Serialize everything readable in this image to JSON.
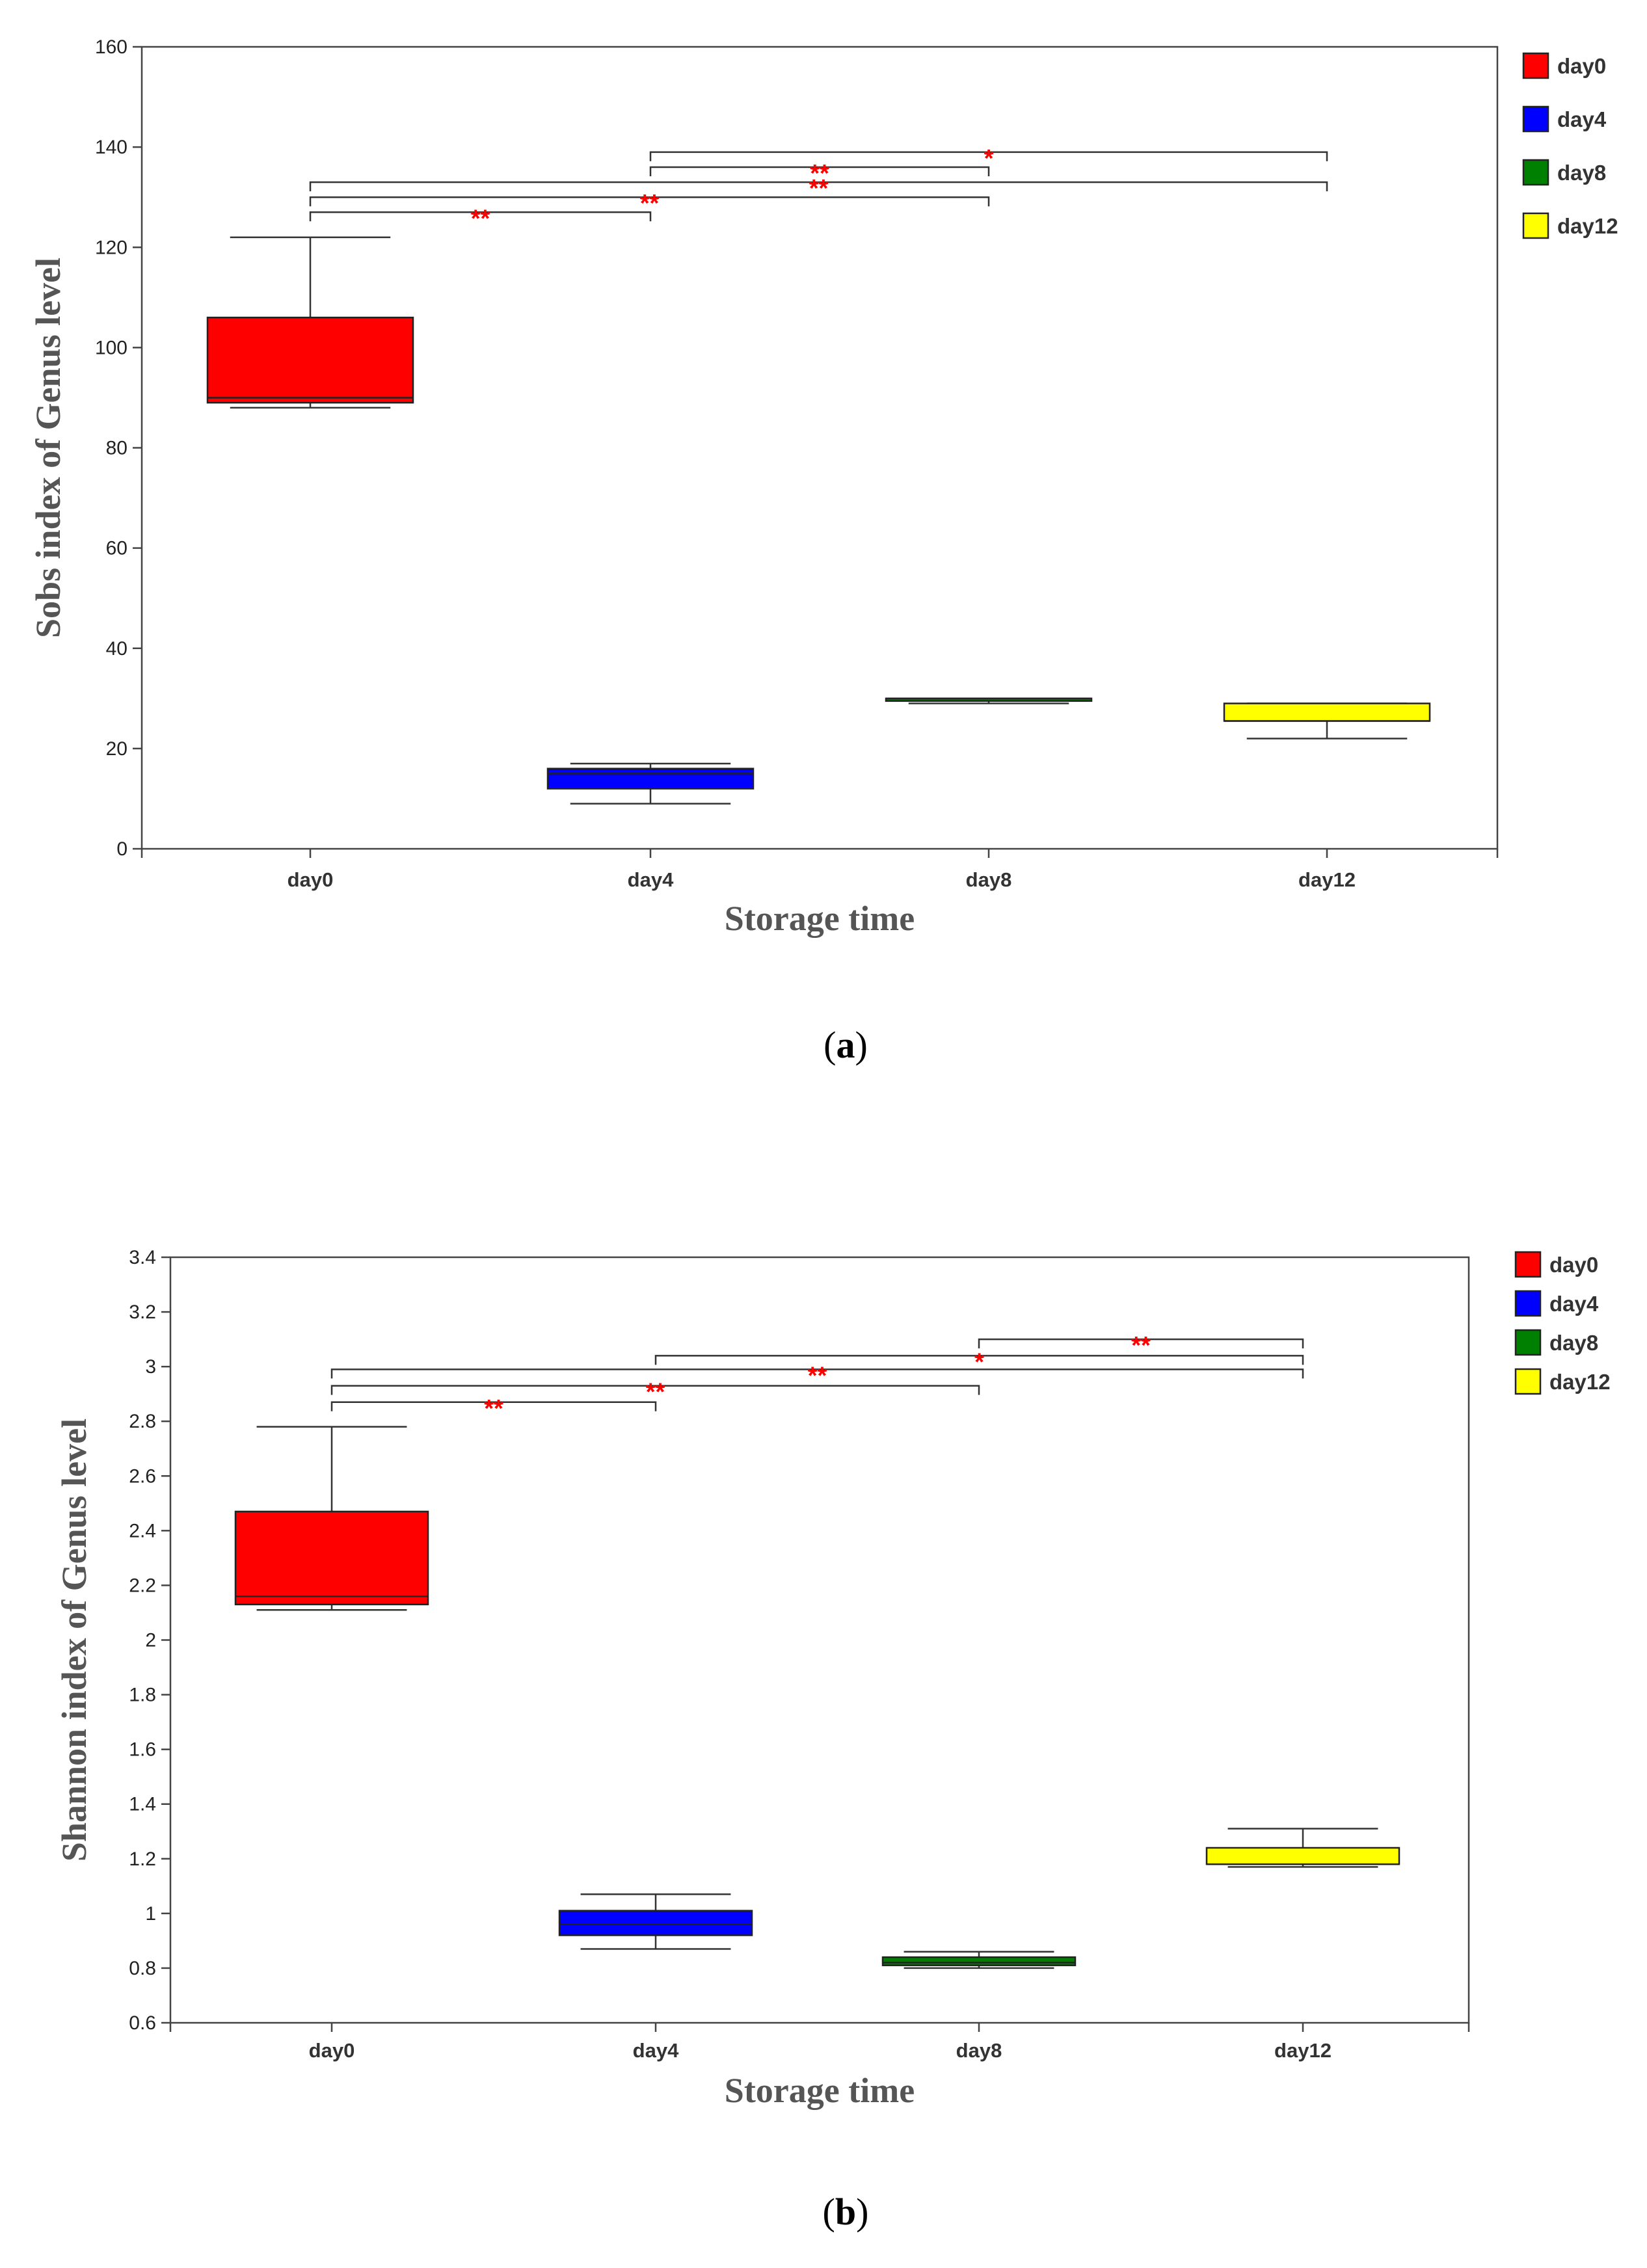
{
  "chart_data": [
    {
      "type": "boxplot",
      "panel_label": "a",
      "xlabel": "Storage time",
      "ylabel": "Sobs index of Genus level",
      "ylim": [
        0,
        160
      ],
      "yticks": [
        0,
        20,
        40,
        60,
        80,
        100,
        120,
        140,
        160
      ],
      "categories": [
        "day0",
        "day4",
        "day8",
        "day12"
      ],
      "colors": [
        "#ff0000",
        "#0000ff",
        "#008000",
        "#ffff00"
      ],
      "legend": [
        "day0",
        "day4",
        "day8",
        "day12"
      ],
      "legend_position": "top-right",
      "boxes": [
        {
          "min": 88,
          "q1": 89,
          "median": 90,
          "q3": 106,
          "max": 122
        },
        {
          "min": 9,
          "q1": 12,
          "median": 15,
          "q3": 16,
          "max": 17
        },
        {
          "min": 29,
          "q1": 29.5,
          "median": 30,
          "q3": 30,
          "max": 30
        },
        {
          "min": 22,
          "q1": 25.5,
          "median": 25.5,
          "q3": 29,
          "max": 29
        }
      ],
      "significance": [
        {
          "from": "day0",
          "to": "day4",
          "y": 127,
          "label": "**"
        },
        {
          "from": "day0",
          "to": "day8",
          "y": 130,
          "label": "**"
        },
        {
          "from": "day0",
          "to": "day12",
          "y": 133,
          "label": "**"
        },
        {
          "from": "day4",
          "to": "day8",
          "y": 136,
          "label": "**"
        },
        {
          "from": "day4",
          "to": "day12",
          "y": 139,
          "label": "*"
        }
      ]
    },
    {
      "type": "boxplot",
      "panel_label": "b",
      "xlabel": "Storage time",
      "ylabel": "Shannon index of Genus level",
      "ylim": [
        0.6,
        3.4
      ],
      "yticks": [
        0.6,
        0.8,
        1,
        1.2,
        1.4,
        1.6,
        1.8,
        2,
        2.2,
        2.4,
        2.6,
        2.8,
        3,
        3.2,
        3.4
      ],
      "ytick_labels": [
        "0.6",
        "0.8",
        "1",
        "1.2",
        "1.4",
        "1.6",
        "1.8",
        "2",
        "2.2",
        "2.4",
        "2.6",
        "2.8",
        "3",
        "3.2",
        "3.4"
      ],
      "categories": [
        "day0",
        "day4",
        "day8",
        "day12"
      ],
      "colors": [
        "#ff0000",
        "#0000ff",
        "#008000",
        "#ffff00"
      ],
      "legend": [
        "day0",
        "day4",
        "day8",
        "day12"
      ],
      "legend_position": "top-right",
      "boxes": [
        {
          "min": 2.11,
          "q1": 2.13,
          "median": 2.16,
          "q3": 2.47,
          "max": 2.78
        },
        {
          "min": 0.87,
          "q1": 0.92,
          "median": 0.96,
          "q3": 1.01,
          "max": 1.07
        },
        {
          "min": 0.8,
          "q1": 0.81,
          "median": 0.82,
          "q3": 0.84,
          "max": 0.86
        },
        {
          "min": 1.17,
          "q1": 1.18,
          "median": 1.18,
          "q3": 1.24,
          "max": 1.31
        }
      ],
      "significance": [
        {
          "from": "day0",
          "to": "day4",
          "y": 2.87,
          "label": "**"
        },
        {
          "from": "day0",
          "to": "day8",
          "y": 2.93,
          "label": "**"
        },
        {
          "from": "day0",
          "to": "day12",
          "y": 2.99,
          "label": "**"
        },
        {
          "from": "day4",
          "to": "day12",
          "y": 3.04,
          "label": "*"
        },
        {
          "from": "day8",
          "to": "day12",
          "y": 3.1,
          "label": "**"
        }
      ]
    }
  ]
}
